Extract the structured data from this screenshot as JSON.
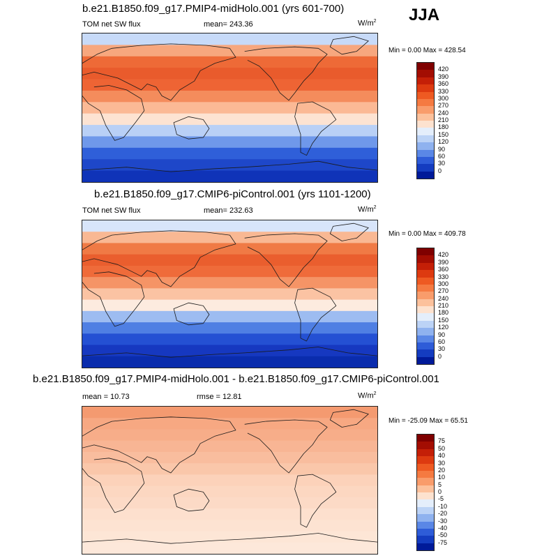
{
  "season": "JJA",
  "panels": [
    {
      "title": "b.e21.B1850.f09_g17.PMIP4-midHolo.001 (yrs 601-700)",
      "left_label": "TOM net SW flux",
      "center_label": "mean= 243.36",
      "units_base": "W/m",
      "units_exp": "2",
      "minmax": "Min =   0.00 Max = 428.54",
      "colorbar": {
        "labels": [
          "420",
          "390",
          "360",
          "330",
          "300",
          "270",
          "240",
          "210",
          "180",
          "150",
          "120",
          "90",
          "60",
          "30",
          "0"
        ],
        "colors": [
          "#7f0000",
          "#a30d02",
          "#c41f07",
          "#dd3a10",
          "#ee5a22",
          "#f57a41",
          "#f99c6b",
          "#fcc19c",
          "#fde2cf",
          "#e4eefb",
          "#bcd3f6",
          "#8fb2ef",
          "#5a87e6",
          "#2e5cd8",
          "#143cc0",
          "#001a99"
        ]
      },
      "map_bands": [
        "#c7daf8",
        "#f7a77e",
        "#ee6a37",
        "#e95b2c",
        "#ee6434",
        "#f48c5c",
        "#fbb995",
        "#fde3d2",
        "#b9d0f6",
        "#6f98ea",
        "#2f5fd9",
        "#1e47c9",
        "#0f33b8"
      ]
    },
    {
      "title": "b.e21.B1850.f09_g17.CMIP6-piControl.001 (yrs 1101-1200)",
      "left_label": "TOM net SW flux",
      "center_label": "mean= 232.63",
      "units_base": "W/m",
      "units_exp": "2",
      "minmax": "Min =   0.00 Max = 409.78",
      "colorbar": {
        "labels": [
          "420",
          "390",
          "360",
          "330",
          "300",
          "270",
          "240",
          "210",
          "180",
          "150",
          "120",
          "90",
          "60",
          "30",
          "0"
        ],
        "colors": [
          "#7f0000",
          "#a30d02",
          "#c41f07",
          "#dd3a10",
          "#ee5a22",
          "#f57a41",
          "#f99c6b",
          "#fcc19c",
          "#fde2cf",
          "#e4eefb",
          "#bcd3f6",
          "#8fb2ef",
          "#5a87e6",
          "#2e5cd8",
          "#143cc0",
          "#001a99"
        ]
      },
      "map_bands": [
        "#d8e5fa",
        "#f9b893",
        "#f07a45",
        "#ea5e2e",
        "#ef6b3a",
        "#f59466",
        "#fbc3a3",
        "#fdebdf",
        "#9dbcf1",
        "#4f7fe3",
        "#2450d3",
        "#1638c0",
        "#0a2cad"
      ]
    },
    {
      "title": "b.e21.B1850.f09_g17.PMIP4-midHolo.001 - b.e21.B1850.f09_g17.CMIP6-piControl.001",
      "left_label": "mean =  10.73",
      "center_label": "rmse =  12.81",
      "units_base": "W/m",
      "units_exp": "2",
      "minmax": "Min = -25.09 Max =  65.51",
      "colorbar": {
        "labels": [
          "75",
          "50",
          "40",
          "30",
          "20",
          "10",
          "5",
          "0",
          "-5",
          "-10",
          "-20",
          "-30",
          "-40",
          "-50",
          "-75"
        ],
        "colors": [
          "#7f0000",
          "#a30d02",
          "#c41f07",
          "#dd3a10",
          "#ee5a22",
          "#f57a41",
          "#f99c6b",
          "#fcc19c",
          "#fde2cf",
          "#e4eefb",
          "#bcd3f6",
          "#8fb2ef",
          "#5a87e6",
          "#2e5cd8",
          "#143cc0",
          "#001a99"
        ]
      },
      "map_bands": [
        "#f49a70",
        "#f7a882",
        "#f7ad89",
        "#f8b594",
        "#f9bd9e",
        "#fac7aa",
        "#fcd2ba",
        "#fcd7c1",
        "#fcdac6",
        "#fde0ce",
        "#fde3d2",
        "#fde6d6",
        "#fde8da"
      ]
    }
  ]
}
